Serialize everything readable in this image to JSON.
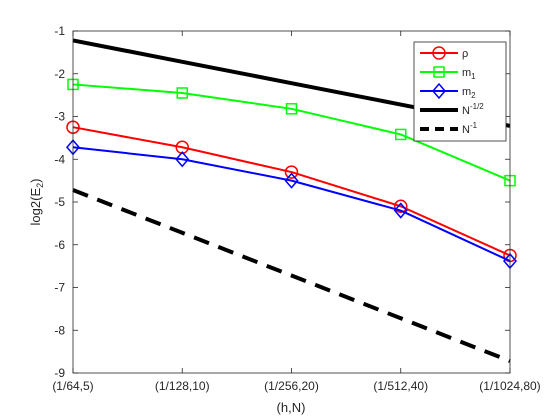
{
  "chart_data": {
    "type": "line",
    "categories": [
      "(1/64,5)",
      "(1/128,10)",
      "(1/256,20)",
      "(1/512,40)",
      "(1/1024,80)"
    ],
    "xlabel": "(h,N)",
    "ylabel": "log2(E",
    "ylabel_sub": "2",
    "ylabel_tail": ")",
    "ylim": [
      -9,
      -1
    ],
    "yticks": [
      -9,
      -8,
      -7,
      -6,
      -5,
      -4,
      -3,
      -2,
      -1
    ],
    "grid": false,
    "legend_position": "top-right",
    "series": [
      {
        "name": "ρ",
        "name_base": "ρ",
        "name_sup": "",
        "name_sub": "",
        "color": "#ff0000",
        "marker": "circle",
        "dash": "solid",
        "width": 2,
        "values": [
          -3.25,
          -3.72,
          -4.3,
          -5.1,
          -6.25
        ]
      },
      {
        "name": "m1",
        "name_base": "m",
        "name_sup": "",
        "name_sub": "1",
        "color": "#00ff00",
        "marker": "square",
        "dash": "solid",
        "width": 2,
        "values": [
          -2.25,
          -2.45,
          -2.82,
          -3.42,
          -4.5
        ]
      },
      {
        "name": "m2",
        "name_base": "m",
        "name_sup": "",
        "name_sub": "2",
        "color": "#0000ff",
        "marker": "diamond",
        "dash": "solid",
        "width": 2,
        "values": [
          -3.72,
          -4.0,
          -4.5,
          -5.2,
          -6.38
        ]
      },
      {
        "name": "N-1/2",
        "name_base": "N",
        "name_sup": "-1/2",
        "name_sub": "",
        "color": "#000000",
        "marker": "none",
        "dash": "solid",
        "width": 4,
        "values": [
          -1.22,
          -1.72,
          -2.22,
          -2.72,
          -3.22
        ]
      },
      {
        "name": "N-1",
        "name_base": "N",
        "name_sup": "-1",
        "name_sub": "",
        "color": "#000000",
        "marker": "none",
        "dash": "dashed",
        "width": 4,
        "values": [
          -4.72,
          -5.72,
          -6.72,
          -7.72,
          -8.72
        ]
      }
    ]
  }
}
